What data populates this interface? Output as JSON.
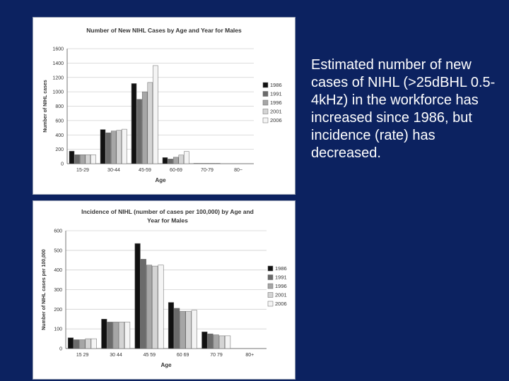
{
  "caption": "Estimated number of new cases of NIHL (>25dBHL 0.5-4kHz) in the workforce has increased since 1986, but incidence (rate) has decreased.",
  "chart_data": [
    {
      "type": "bar",
      "title_lines": [
        "Number of  New NIHL Cases by Age and Year for Males"
      ],
      "xlabel": "Age",
      "ylabel": "Number of NIHL cases",
      "ylim": [
        0,
        1600
      ],
      "yticks": [
        "0",
        "200",
        "400",
        "600",
        "800",
        "1000",
        "1200",
        "1400",
        "1600"
      ],
      "grid": true,
      "legend_position": "right",
      "categories": [
        "15-29",
        "30-44",
        "45-59",
        "60-69",
        "70-79",
        "80~"
      ],
      "series": [
        {
          "name": "1986",
          "color": "#111111",
          "values": [
            175,
            475,
            1115,
            85,
            5,
            0
          ]
        },
        {
          "name": "1991",
          "color": "#6b6b6b",
          "values": [
            125,
            430,
            895,
            65,
            5,
            0
          ]
        },
        {
          "name": "1996",
          "color": "#a6a6a6",
          "values": [
            125,
            455,
            1000,
            90,
            5,
            0
          ]
        },
        {
          "name": "2001",
          "color": "#d4d4d4",
          "values": [
            125,
            465,
            1130,
            120,
            5,
            0
          ]
        },
        {
          "name": "2006",
          "color": "#f4f4f4",
          "values": [
            125,
            480,
            1365,
            170,
            5,
            0
          ]
        }
      ]
    },
    {
      "type": "bar",
      "title_lines": [
        "Incidence of NIHL (number of cases per 100,000) by Age and",
        "Year for Males"
      ],
      "xlabel": "Age",
      "ylabel": "Number of NIHL cases per 100,000",
      "ylim": [
        0,
        600
      ],
      "yticks": [
        "0",
        "100",
        "200",
        "300",
        "400",
        "500",
        "600"
      ],
      "grid": true,
      "legend_position": "right",
      "categories": [
        "15 29",
        "30 44",
        "45 59",
        "60 69",
        "70 79",
        "80+"
      ],
      "series": [
        {
          "name": "1986",
          "color": "#111111",
          "values": [
            55,
            150,
            535,
            235,
            85,
            0
          ]
        },
        {
          "name": "1991",
          "color": "#6b6b6b",
          "values": [
            45,
            135,
            455,
            205,
            75,
            0
          ]
        },
        {
          "name": "1996",
          "color": "#a6a6a6",
          "values": [
            45,
            135,
            425,
            190,
            70,
            0
          ]
        },
        {
          "name": "2001",
          "color": "#d4d4d4",
          "values": [
            50,
            135,
            420,
            190,
            65,
            0
          ]
        },
        {
          "name": "2006",
          "color": "#f4f4f4",
          "values": [
            50,
            135,
            425,
            195,
            65,
            0
          ]
        }
      ]
    }
  ]
}
